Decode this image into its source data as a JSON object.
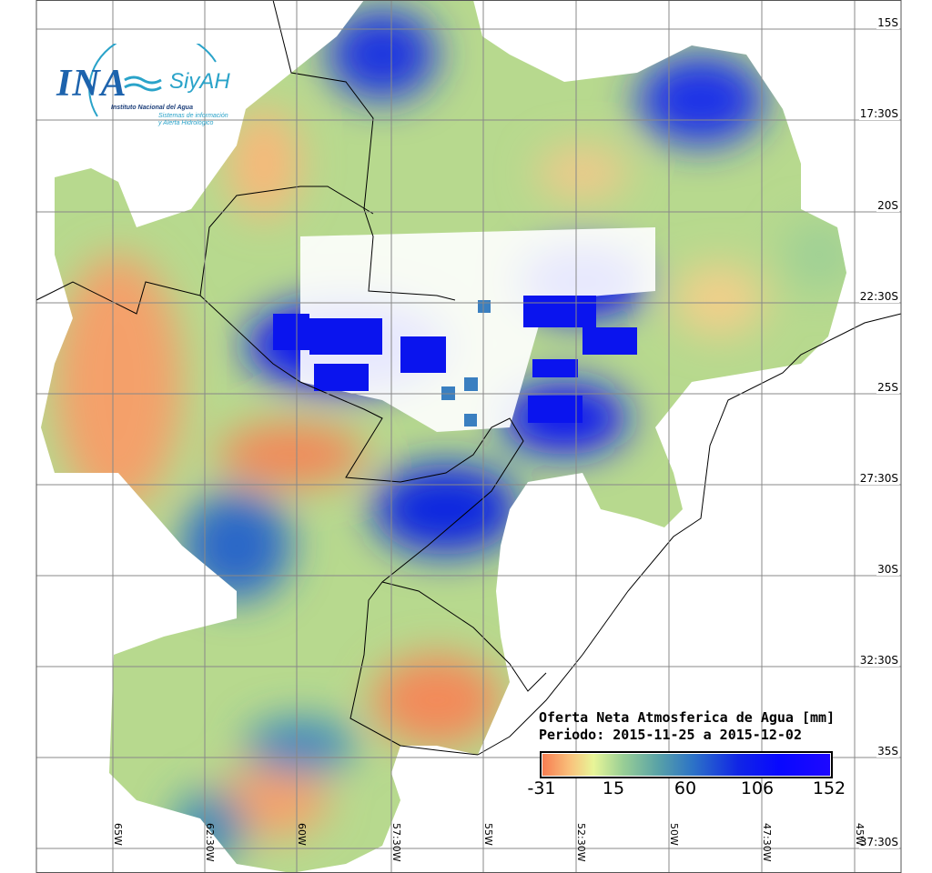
{
  "logo": {
    "acronym": "INA",
    "brand": "SiyAH",
    "institute": "Instituto Nacional del Agua",
    "system_line1": "Sistemas de información",
    "system_line2": "y Alerta Hidrológico"
  },
  "legend": {
    "title": "Oferta Neta Atmosferica de Agua [mm]",
    "period": "Periodo: 2015-11-25 a 2015-12-02",
    "ticks": [
      "-31",
      "15",
      "60",
      "106",
      "152"
    ],
    "colors": [
      "#f77b50",
      "#e8f598",
      "#5aa3a6",
      "#1025e6",
      "#1e08ff"
    ]
  },
  "lat_labels": [
    "15S",
    "17:30S",
    "20S",
    "22:30S",
    "25S",
    "27:30S",
    "30S",
    "32:30S",
    "35S",
    "37:30S"
  ],
  "lon_labels": [
    "65W",
    "62:30W",
    "60W",
    "57:30W",
    "55W",
    "52:30W",
    "50W",
    "47:30W",
    "45W"
  ]
}
